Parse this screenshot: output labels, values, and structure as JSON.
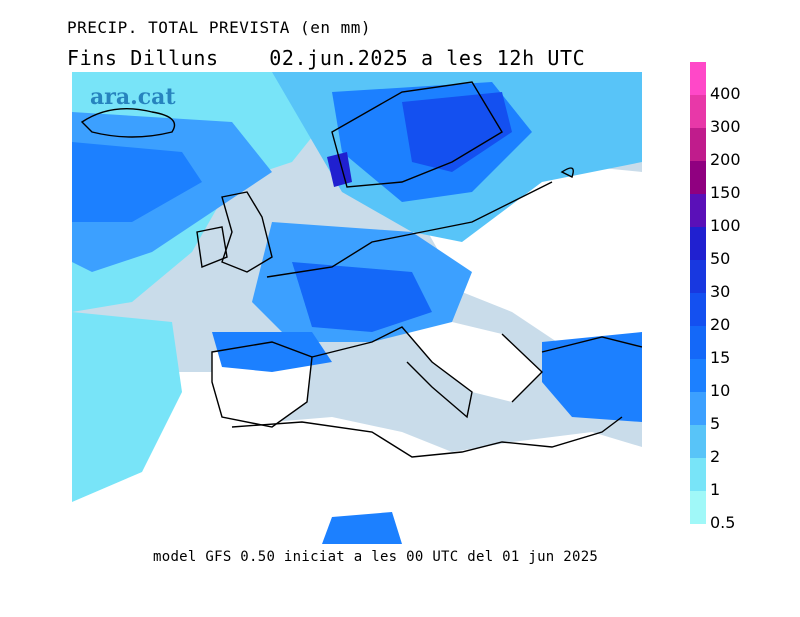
{
  "header": {
    "title": "PRECIP. TOTAL PREVISTA (en mm)",
    "subtitle": "Fins Dilluns    02.jun.2025 a les 12h UTC"
  },
  "map": {
    "logo": "ara.cat"
  },
  "footer": {
    "model_info": "model GFS 0.50 iniciat a les 00 UTC del 01 jun 2025"
  },
  "legend": {
    "items": [
      {
        "label": "400",
        "color": "#ff48c8"
      },
      {
        "label": "300",
        "color": "#e838a8"
      },
      {
        "label": "200",
        "color": "#c01c8c"
      },
      {
        "label": "150",
        "color": "#900080"
      },
      {
        "label": "100",
        "color": "#5a10b8"
      },
      {
        "label": "50",
        "color": "#2020d0"
      },
      {
        "label": "30",
        "color": "#1838e0"
      },
      {
        "label": "20",
        "color": "#1450f0"
      },
      {
        "label": "15",
        "color": "#1468f8"
      },
      {
        "label": "10",
        "color": "#1c80ff"
      },
      {
        "label": "5",
        "color": "#3ca0ff"
      },
      {
        "label": "2",
        "color": "#58c4f8"
      },
      {
        "label": "1",
        "color": "#78e4f8"
      },
      {
        "label": "0.5",
        "color": "#a0f8f8"
      }
    ]
  }
}
